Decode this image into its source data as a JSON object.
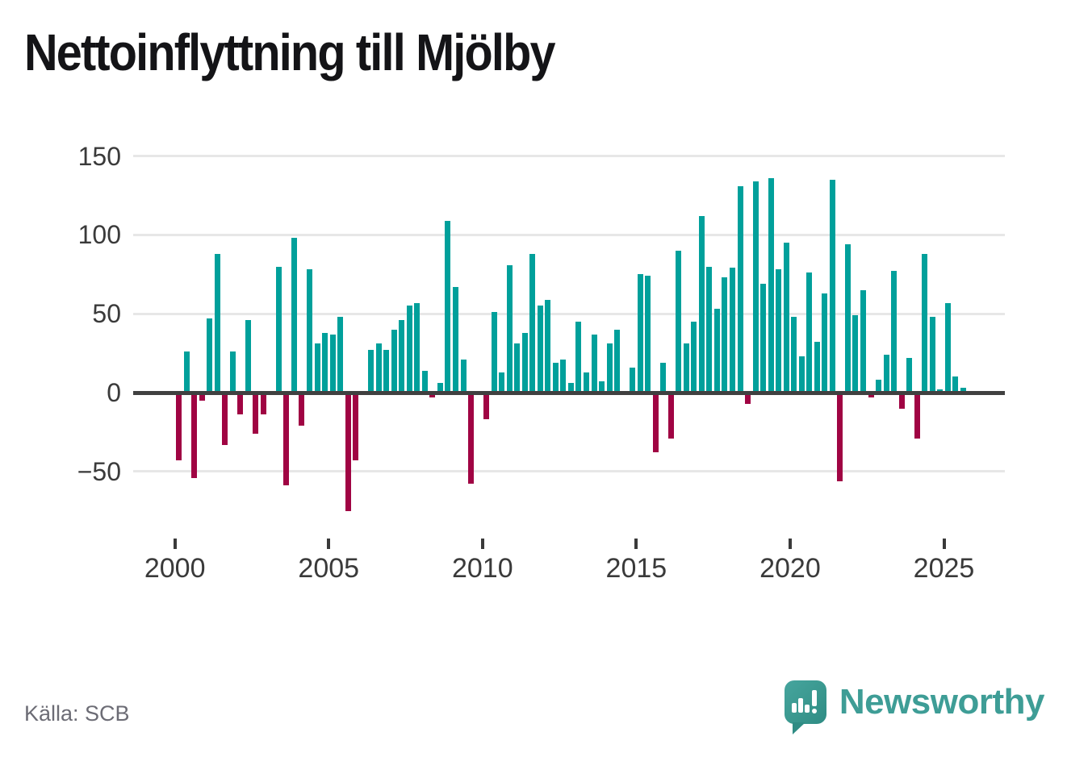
{
  "title": "Nettoinflyttning till Mjölby",
  "source": "Källa: SCB",
  "branding": {
    "name": "Newsworthy",
    "logo_icon": "speech-bubble-bar-chart-exclamation"
  },
  "colors": {
    "positive_bar": "#00a09b",
    "negative_bar": "#a00443",
    "zero_axis": "#404040",
    "gridline": "#e7e7e7",
    "axis_text": "#3a3a3a",
    "title_text": "#141417",
    "source_text": "#6c6c75",
    "brand_teal": "#3e9d96"
  },
  "chart_data": {
    "type": "bar",
    "title": "Nettoinflyttning till Mjölby",
    "xlabel": "",
    "ylabel": "",
    "frequency": "quarterly",
    "grid": true,
    "legend": false,
    "ylim": [
      -80,
      160
    ],
    "y_ticks": [
      150,
      100,
      50,
      0,
      -50
    ],
    "y_tick_labels": [
      "150",
      "100",
      "50",
      "0",
      "−50"
    ],
    "x_tick_years": [
      2000,
      2005,
      2010,
      2015,
      2020,
      2025
    ],
    "x_tick_labels": [
      "2000",
      "2005",
      "2010",
      "2015",
      "2020",
      "2025"
    ],
    "points": [
      [
        "2000K1",
        -43
      ],
      [
        "2000K2",
        26
      ],
      [
        "2000K3",
        -54
      ],
      [
        "2000K4",
        -5
      ],
      [
        "2001K1",
        47
      ],
      [
        "2001K2",
        88
      ],
      [
        "2001K3",
        -33
      ],
      [
        "2001K4",
        26
      ],
      [
        "2002K1",
        -14
      ],
      [
        "2002K2",
        46
      ],
      [
        "2002K3",
        -26
      ],
      [
        "2002K4",
        -14
      ],
      [
        "2003K1",
        0
      ],
      [
        "2003K2",
        80
      ],
      [
        "2003K3",
        -59
      ],
      [
        "2003K4",
        98
      ],
      [
        "2004K1",
        -21
      ],
      [
        "2004K2",
        78
      ],
      [
        "2004K3",
        31
      ],
      [
        "2004K4",
        38
      ],
      [
        "2005K1",
        37
      ],
      [
        "2005K2",
        48
      ],
      [
        "2005K3",
        -75
      ],
      [
        "2005K4",
        -43
      ],
      [
        "2006K1",
        0
      ],
      [
        "2006K2",
        27
      ],
      [
        "2006K3",
        31
      ],
      [
        "2006K4",
        27
      ],
      [
        "2007K1",
        40
      ],
      [
        "2007K2",
        46
      ],
      [
        "2007K3",
        55
      ],
      [
        "2007K4",
        57
      ],
      [
        "2008K1",
        14
      ],
      [
        "2008K2",
        -3
      ],
      [
        "2008K3",
        6
      ],
      [
        "2008K4",
        109
      ],
      [
        "2009K1",
        67
      ],
      [
        "2009K2",
        21
      ],
      [
        "2009K3",
        -58
      ],
      [
        "2009K4",
        0
      ],
      [
        "2010K1",
        -17
      ],
      [
        "2010K2",
        51
      ],
      [
        "2010K3",
        13
      ],
      [
        "2010K4",
        81
      ],
      [
        "2011K1",
        31
      ],
      [
        "2011K2",
        38
      ],
      [
        "2011K3",
        88
      ],
      [
        "2011K4",
        55
      ],
      [
        "2012K1",
        59
      ],
      [
        "2012K2",
        19
      ],
      [
        "2012K3",
        21
      ],
      [
        "2012K4",
        6
      ],
      [
        "2013K1",
        45
      ],
      [
        "2013K2",
        13
      ],
      [
        "2013K3",
        37
      ],
      [
        "2013K4",
        7
      ],
      [
        "2014K1",
        31
      ],
      [
        "2014K2",
        40
      ],
      [
        "2014K3",
        0
      ],
      [
        "2014K4",
        16
      ],
      [
        "2015K1",
        75
      ],
      [
        "2015K2",
        74
      ],
      [
        "2015K3",
        -38
      ],
      [
        "2015K4",
        19
      ],
      [
        "2016K1",
        -29
      ],
      [
        "2016K2",
        90
      ],
      [
        "2016K3",
        31
      ],
      [
        "2016K4",
        45
      ],
      [
        "2017K1",
        112
      ],
      [
        "2017K2",
        80
      ],
      [
        "2017K3",
        53
      ],
      [
        "2017K4",
        73
      ],
      [
        "2018K1",
        79
      ],
      [
        "2018K2",
        131
      ],
      [
        "2018K3",
        -7
      ],
      [
        "2018K4",
        134
      ],
      [
        "2019K1",
        69
      ],
      [
        "2019K2",
        136
      ],
      [
        "2019K3",
        78
      ],
      [
        "2019K4",
        95
      ],
      [
        "2020K1",
        48
      ],
      [
        "2020K2",
        23
      ],
      [
        "2020K3",
        76
      ],
      [
        "2020K4",
        32
      ],
      [
        "2021K1",
        63
      ],
      [
        "2021K2",
        135
      ],
      [
        "2021K3",
        -56
      ],
      [
        "2021K4",
        94
      ],
      [
        "2022K1",
        49
      ],
      [
        "2022K2",
        65
      ],
      [
        "2022K3",
        -3
      ],
      [
        "2022K4",
        8
      ],
      [
        "2023K1",
        24
      ],
      [
        "2023K2",
        77
      ],
      [
        "2023K3",
        -10
      ],
      [
        "2023K4",
        22
      ],
      [
        "2024K1",
        -29
      ],
      [
        "2024K2",
        88
      ],
      [
        "2024K3",
        48
      ],
      [
        "2024K4",
        2
      ],
      [
        "2025K1",
        57
      ],
      [
        "2025K2",
        10
      ],
      [
        "2025K3",
        3
      ]
    ]
  }
}
